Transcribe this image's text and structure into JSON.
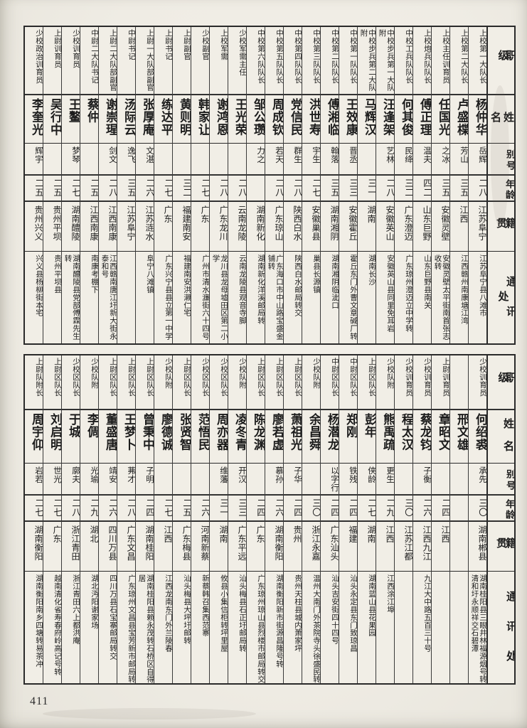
{
  "page": {
    "number": "411"
  },
  "header_labels": [
    "职级",
    "姓名",
    "别号",
    "年龄",
    "籍贯",
    "通讯处"
  ],
  "sections": [
    {
      "rows": [
        {
          "rank": "上校第一大队长",
          "name": "杨仲华",
          "hao": "岳辉",
          "age": "二八",
          "origin": "江苏阜宁",
          "address": "江苏阜宁县八滩市"
        },
        {
          "rank": "上校第二大队长",
          "name": "卢盛楪",
          "hao": "芳山",
          "age": "三五",
          "origin": "江西",
          "address": "江西赣州南康塘江湾"
        },
        {
          "rank": "上校主任训育员",
          "name": "任国光",
          "hao": "之冰",
          "age": "三五",
          "origin": "安徽灵壁",
          "address": "安徽灵壁太平街南首张志收转"
        },
        {
          "rank": "上校炮兵队队长",
          "name": "傅正理",
          "hao": "温夫",
          "age": "四二",
          "origin": "山东巨野",
          "address": "山东巨野县南关"
        },
        {
          "rank": "中校工兵队队长",
          "name": "何其俊",
          "hao": "民绛",
          "age": "三二",
          "origin": "广东澄迈",
          "address": "广东琼州澄迈立中学转"
        },
        {
          "rank": "中校步兵第一大队附",
          "name": "汪逢架",
          "hao": "艺林",
          "age": "二八",
          "origin": "安徽英山",
          "address": "安徽英山县同里免耳岩"
        },
        {
          "rank": "中校步兵第二大队附",
          "name": "马辉汉",
          "hao": "",
          "age": "三一",
          "origin": "湖南",
          "address": "湖南长沙"
        },
        {
          "rank": "中校第一队队长",
          "name": "王效康",
          "hao": "晋丞",
          "age": "三三",
          "origin": "安徽霍丘",
          "address": "霍丘东门外曹文章碱厂转"
        },
        {
          "rank": "中校第二队队长",
          "name": "傅湘临",
          "hao": "翰落",
          "age": "三五",
          "origin": "湖南湘阴",
          "address": "湖南湘阴临泚口"
        },
        {
          "rank": "中校第三队队长",
          "name": "洪世寿",
          "hao": "宇生",
          "age": "二七",
          "origin": "安徽巢县",
          "address": "巢县长源镇"
        },
        {
          "rank": "中校第四队队长",
          "name": "党信民",
          "hao": "群生",
          "age": "二八",
          "origin": "陕西白水",
          "address": "陕西白水邮局转交"
        },
        {
          "rank": "中校第五队队长",
          "name": "周成钦",
          "hao": "若天",
          "age": "二八",
          "origin": "广东琼山",
          "address": "广东海口市中山路宝盛金铺转"
        },
        {
          "rank": "中校第六队队长",
          "name": "邹公瓒",
          "hao": "力之",
          "age": "",
          "origin": "湖南新化",
          "address": "湖南新化洋溪邮局转"
        },
        {
          "rank": "少校军需主任",
          "name": "王光荣",
          "hao": "",
          "age": "二八",
          "origin": "云南龙陵",
          "address": "云南龙陵县观音寺脚"
        },
        {
          "rank": "上校军需",
          "name": "谢鸿恩",
          "hao": "",
          "age": "二八",
          "origin": "广东龙川",
          "address": "龙川县龙母墟田区第二小学"
        },
        {
          "rank": "少校副官",
          "name": "韩家让",
          "hao": "",
          "age": "二七",
          "origin": "广东",
          "address": "广州市清水濂街六十四号"
        },
        {
          "rank": "上尉副官",
          "name": "黄则明",
          "hao": "",
          "age": "三二",
          "origin": "福建南安",
          "address": "福建南安洪濑仁宅"
        },
        {
          "rank": "上尉书记",
          "name": "练达平",
          "hao": "",
          "age": "二七",
          "origin": "广东",
          "address": "广东兴宁县县立第一中学"
        },
        {
          "rank": "上尉一大队部副官",
          "name": "张厚庵",
          "hao": "文湛",
          "age": "二六",
          "origin": "江苏涟水",
          "address": "阜宁八滩镇"
        },
        {
          "rank": "中尉书记",
          "name": "汤际云",
          "hao": "逸飞",
          "age": "三五",
          "origin": "江苏阜宁",
          "address": ""
        },
        {
          "rank": "上尉二大队部副官",
          "name": "谢崇瑆",
          "hao": "剑文",
          "age": "二八",
          "origin": "江西南康",
          "address": "江西赣南唐江圩新大街永泰和号"
        },
        {
          "rank": "中尉二大队书记",
          "name": "蔡仲",
          "hao": "",
          "age": "二五",
          "origin": "江西南康",
          "address": "南康考棚下"
        },
        {
          "rank": "少校训育员",
          "name": "王鳌",
          "hao": "梦琴",
          "age": "二七",
          "origin": "湖南醴陵",
          "address": "湖南醴陵县党部傅霖先生转"
        },
        {
          "rank": "上尉训育员",
          "name": "吴行中",
          "hao": "",
          "age": "二五",
          "origin": "贵州平坝",
          "address": "贵州平坝县"
        },
        {
          "rank": "少校政治训育员",
          "name": "李奎光",
          "hao": "辉宇",
          "age": "二五",
          "origin": "贵州兴义",
          "address": "兴义县杨柳街本宅"
        }
      ]
    },
    {
      "rows": [
        {
          "rank": "少校训育员",
          "name": "何绍裘",
          "hao": "承先",
          "age": "三〇",
          "origin": "湖南郴县",
          "address": "湖南桂阳县三眼井林福源烟号转清和圩永顺祥交石碧潭"
        },
        {
          "rank": "",
          "name": "邢文雄",
          "hao": "",
          "age": "",
          "origin": "",
          "address": ""
        },
        {
          "rank": "上尉训育员",
          "name": "章昭文",
          "hao": "",
          "age": "二四",
          "origin": "江西",
          "address": ""
        },
        {
          "rank": "少校训育员",
          "name": "蔡龙钧",
          "hao": "子衡",
          "age": "二六",
          "origin": "江西九江",
          "address": "九江大中路五百三十号"
        },
        {
          "rank": "少校训育员",
          "name": "程太汉",
          "hao": "",
          "age": "三〇",
          "origin": "江苏江都",
          "address": ""
        },
        {
          "rank": "少校队附",
          "name": "熊禹疏",
          "hao": "更生",
          "age": "二九",
          "origin": "江西",
          "address": "江西涂江埠"
        },
        {
          "rank": "上尉区队长",
          "name": "彭年",
          "hao": "侠龄",
          "age": "二七",
          "origin": "湖南",
          "address": "湖南蓝山县花果园"
        },
        {
          "rank": "中尉区队长",
          "name": "郑刚",
          "hao": "铁残",
          "age": "二四",
          "origin": "福建",
          "address": "汕头永定县东门致琼昌"
        },
        {
          "rank": "中尉区队长",
          "name": "杨潜龙",
          "hao": "以字行",
          "age": "二四",
          "origin": "广东汕头",
          "address": "汕头吉安街四十四号"
        },
        {
          "rank": "少校队附",
          "name": "余昌舜",
          "hao": "",
          "age": "三〇",
          "origin": "浙江永嘉",
          "address": "温州大南门外茶院寺头徐盛民转"
        },
        {
          "rank": "上尉区队长",
          "name": "萧祖光",
          "hao": "子华",
          "age": "二四",
          "origin": "贵州",
          "address": "贵州天柱县城内萧家坪"
        },
        {
          "rank": "上尉区队长",
          "name": "廖若虚",
          "hao": "慕孙",
          "age": "二六",
          "origin": "湖南衡阳",
          "address": "湖南衡阳新市街源昌隆号转"
        },
        {
          "rank": "上尉区队长",
          "name": "陈龙渊",
          "hao": "",
          "age": "二四",
          "origin": "广东",
          "address": "广东琼州琼山县烈楼市邮局转交"
        },
        {
          "rank": "少校队附",
          "name": "凌冬青",
          "hao": "开汉",
          "age": "三三",
          "origin": "广东平远",
          "address": "汕头梅县石正圩邮局转"
        },
        {
          "rank": "少校区队长",
          "name": "周亦器",
          "hao": "维藩",
          "age": "三一",
          "origin": "湖南",
          "address": "攸县小集信柜转坪里屋"
        },
        {
          "rank": "少校区队长",
          "name": "范悟民",
          "hao": "",
          "age": "二六",
          "origin": "河南新蔡",
          "address": "新蔡韩召集西范寨"
        },
        {
          "rank": "上尉区队长",
          "name": "张贤智",
          "hao": "",
          "age": "二五",
          "origin": "广东梅县",
          "address": "汕头梅县大坪圩邮转"
        },
        {
          "rank": "少校队附",
          "name": "廖德诚",
          "hao": "",
          "age": "二七",
          "origin": "江西",
          "address": "江西龙南东门外兰陵春"
        },
        {
          "rank": "上尉区队长",
          "name": "曾秉中",
          "hao": "子明",
          "age": "二四",
          "origin": "湖南桂阳",
          "address": "湖南桂阳县赖永茂转石桥区自得居"
        },
        {
          "rank": "上尉区队长",
          "name": "王梦卜",
          "hao": "茀才",
          "age": "二八",
          "origin": "广东文昌",
          "address": "广东琼州文昌县宝芳新市邮局转"
        },
        {
          "rank": "上尉区队长",
          "name": "董盛唐",
          "hao": "靖安",
          "age": "二六",
          "origin": "四川万县",
          "address": "四川万县石宝寨邮局转交"
        },
        {
          "rank": "少校队附",
          "name": "李倜",
          "hao": "光瑜",
          "age": "二九",
          "origin": "湖北",
          "address": "湖北沔阳谢家场"
        },
        {
          "rank": "少校区队长",
          "name": "于城",
          "hao": "廓夫",
          "age": "二八",
          "origin": "浙江青田",
          "address": "浙江青田六上都洪庵"
        },
        {
          "rank": "上尉区队长",
          "name": "刘启明",
          "hao": "世光",
          "age": "二七",
          "origin": "广东",
          "address": "越南清化省寿春府岭高记号转"
        },
        {
          "rank": "上尉队附长",
          "name": "周宇仰",
          "hao": "岩若",
          "age": "二七",
          "origin": "湖南衡阳",
          "address": "湖南衡阳南乡四塘转易茶冲"
        }
      ]
    }
  ]
}
